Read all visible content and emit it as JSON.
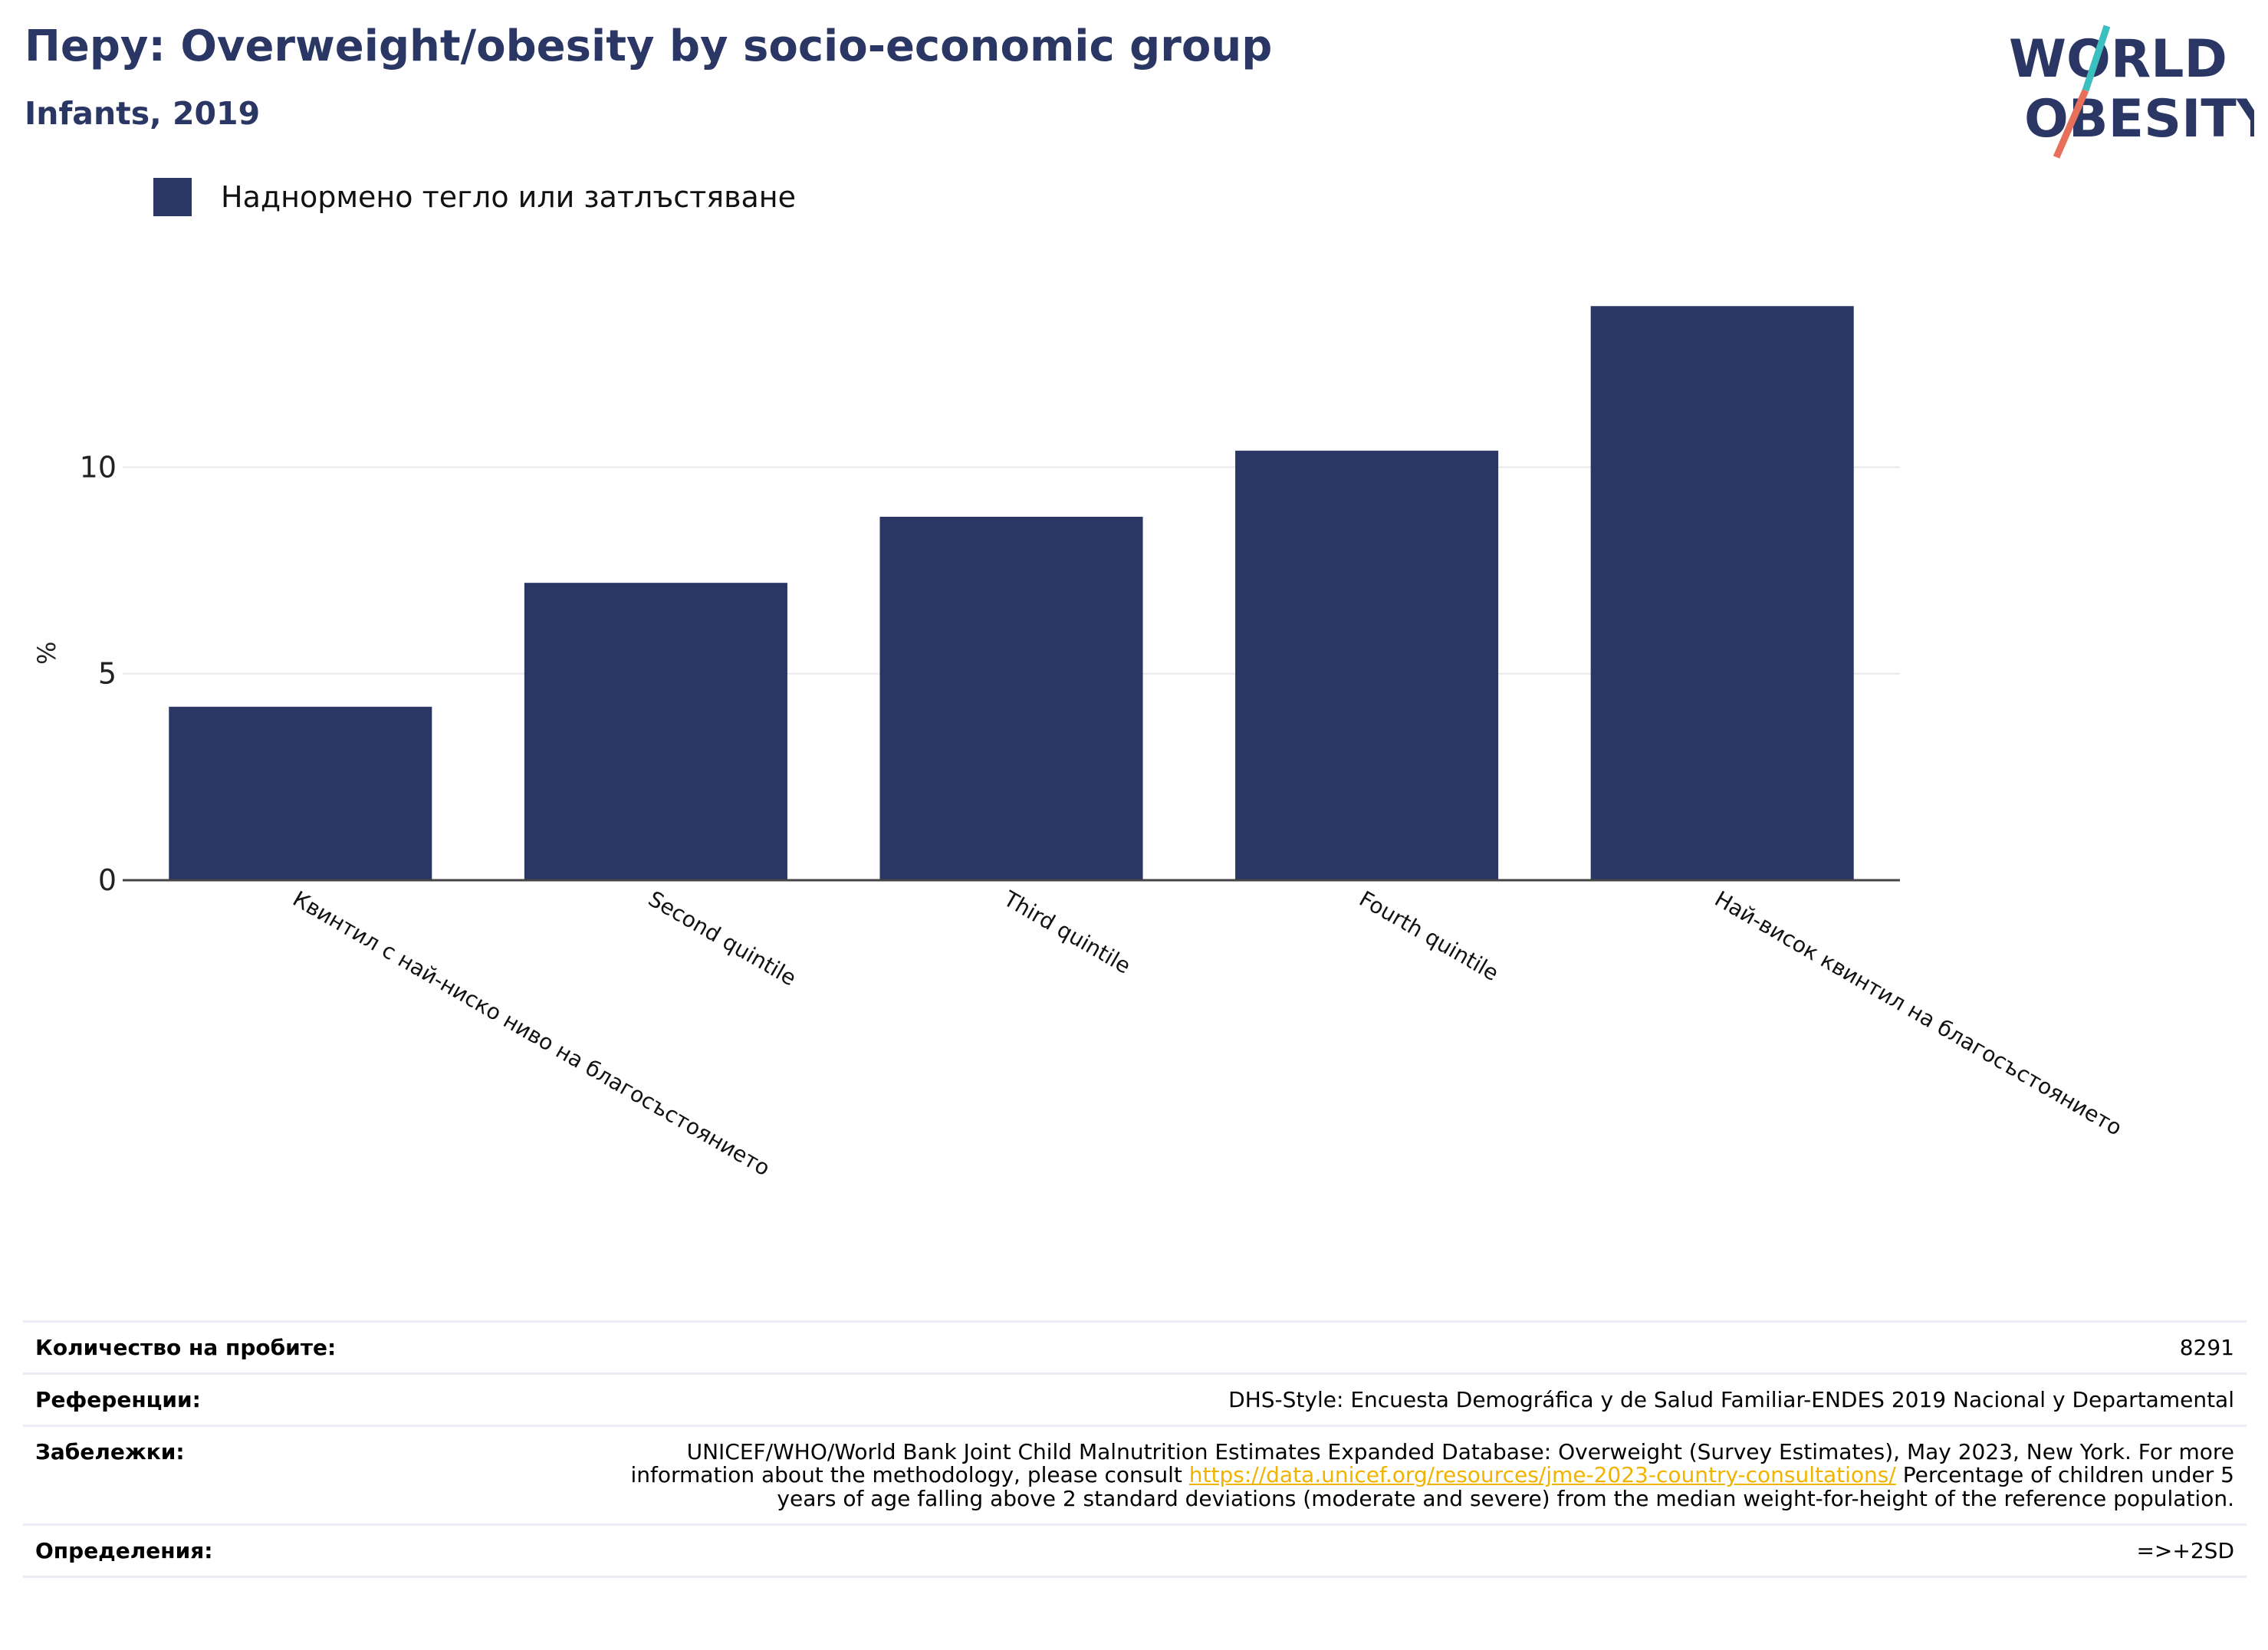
{
  "header": {
    "title": "Перу: Overweight/obesity by socio-economic group",
    "subtitle": "Infants, 2019"
  },
  "logo": {
    "line1": "WORLD",
    "line2": "OBESITY",
    "colors": {
      "text": "#2a3663",
      "teal": "#3cbfbf",
      "coral": "#e8705a"
    }
  },
  "colors": {
    "bar": "#2a3663",
    "axis": "#444444",
    "grid": "#e6e8ee"
  },
  "chart_data": {
    "type": "bar",
    "title": "Перу: Overweight/obesity by socio-economic group",
    "subtitle": "Infants, 2019",
    "categories": [
      "Квинтил с най-ниско ниво на благосъстоянието",
      "Second quintile",
      "Third quintile",
      "Fourth quintile",
      "Най-висок квинтил на благосъстоянието"
    ],
    "series": [
      {
        "name": "Наднормено тегло или затлъстяване",
        "values": [
          4.2,
          7.2,
          8.8,
          10.4,
          13.9
        ],
        "color": "#2a3663"
      }
    ],
    "ylabel": "%",
    "xlabel": "",
    "ylim": [
      0,
      15
    ],
    "yticks": [
      0,
      5,
      10
    ],
    "ytick_labels": [
      "0",
      "5",
      "10"
    ],
    "grid": true,
    "legend_position": "top-left"
  },
  "info": {
    "rows": [
      {
        "label": "Количество на пробите:",
        "value": "8291"
      },
      {
        "label": "Референции:",
        "value": "DHS-Style: Encuesta Demográfica y de Salud Familiar-ENDES 2019 Nacional y Departamental"
      },
      {
        "label": "Забележки:",
        "value_before": "UNICEF/WHO/World Bank Joint Child Malnutrition Estimates Expanded Database: Overweight (Survey Estimates), May 2023, New York. For more information about the methodology, please consult ",
        "link": "https://data.unicef.org/resources/jme-2023-country-consultations/",
        "value_after": " Percentage of children under 5 years of age falling above 2 standard deviations (moderate and severe) from the median weight-for-height of the reference population."
      },
      {
        "label": "Определения:",
        "value": "=>+2SD"
      }
    ]
  }
}
